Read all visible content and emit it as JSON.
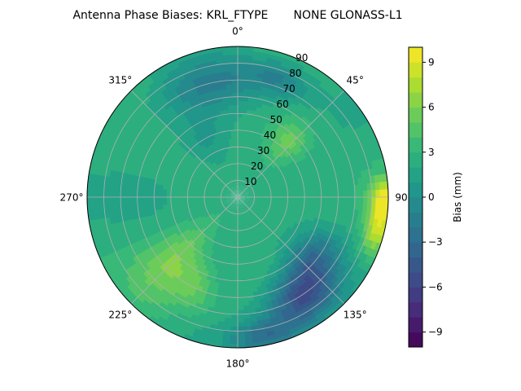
{
  "chart_data": {
    "type": "heatmap",
    "plot_kind": "polar filled contour",
    "title": "Antenna Phase Biases: KRL_FTYPE       NONE GLONASS-L1",
    "colorbar_label": "Bias (mm)",
    "colorbar_range": [
      -10,
      10
    ],
    "colorbar_ticks": [
      "−9",
      "−6",
      "−3",
      "0",
      "3",
      "6",
      "9"
    ],
    "colormap": "viridis",
    "angle_ticks": [
      "0°",
      "45°",
      "90°",
      "135°",
      "180°",
      "225°",
      "270°",
      "315°"
    ],
    "radial_ticks": [
      "10",
      "20",
      "30",
      "40",
      "50",
      "60",
      "70",
      "80",
      "90"
    ],
    "radial_range": [
      0,
      90
    ],
    "grid": true,
    "bias_features": [
      {
        "kind": "background",
        "value": 2.5
      },
      {
        "kind": "blob",
        "azimuth_deg": 43,
        "zenith_deg": 45,
        "value": 5.5,
        "spread_az_deg": 14,
        "spread_zen_deg": 15
      },
      {
        "kind": "blob",
        "azimuth_deg": 92,
        "zenith_deg": 87,
        "value": 9.5,
        "spread_az_deg": 9,
        "spread_zen_deg": 8
      },
      {
        "kind": "blob",
        "azimuth_deg": 105,
        "zenith_deg": 86,
        "value": 7.5,
        "spread_az_deg": 9,
        "spread_zen_deg": 8
      },
      {
        "kind": "blob",
        "azimuth_deg": 225,
        "zenith_deg": 55,
        "value": 5.8,
        "spread_az_deg": 16,
        "spread_zen_deg": 28
      },
      {
        "kind": "blob",
        "azimuth_deg": 205,
        "zenith_deg": 60,
        "value": 5.0,
        "spread_az_deg": 12,
        "spread_zen_deg": 15
      },
      {
        "kind": "blob",
        "azimuth_deg": 148,
        "zenith_deg": 72,
        "value": -4.8,
        "spread_az_deg": 18,
        "spread_zen_deg": 16
      },
      {
        "kind": "blob",
        "azimuth_deg": 130,
        "zenith_deg": 58,
        "value": -2.0,
        "spread_az_deg": 18,
        "spread_zen_deg": 14
      },
      {
        "kind": "blob",
        "azimuth_deg": 170,
        "zenith_deg": 85,
        "value": -2.5,
        "spread_az_deg": 14,
        "spread_zen_deg": 10
      },
      {
        "kind": "blob",
        "azimuth_deg": 350,
        "zenith_deg": 70,
        "value": -1.0,
        "spread_az_deg": 30,
        "spread_zen_deg": 16
      },
      {
        "kind": "blob",
        "azimuth_deg": 20,
        "zenith_deg": 75,
        "value": -0.5,
        "spread_az_deg": 14,
        "spread_zen_deg": 10
      },
      {
        "kind": "blob",
        "azimuth_deg": 270,
        "zenith_deg": 60,
        "value": 2.0,
        "spread_az_deg": 20,
        "spread_zen_deg": 20
      },
      {
        "kind": "blob",
        "azimuth_deg": 330,
        "zenith_deg": 40,
        "value": 1.0,
        "spread_az_deg": 20,
        "spread_zen_deg": 15
      }
    ]
  }
}
